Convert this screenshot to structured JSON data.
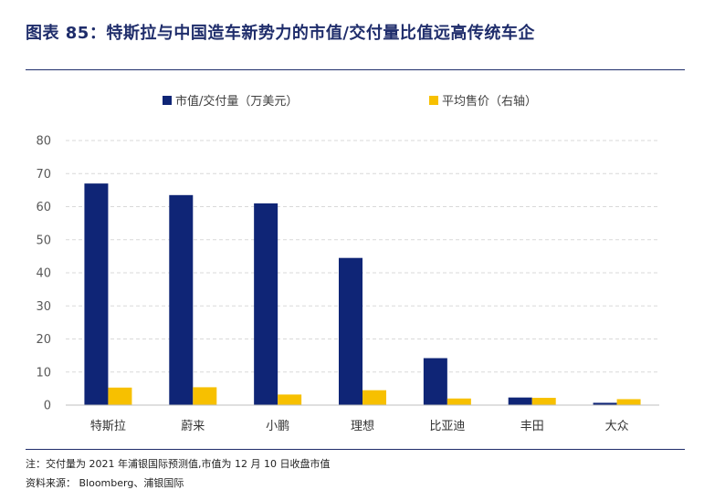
{
  "figure": {
    "title": "图表 85：特斯拉与中国造车新势力的市值/交付量比值远高传统车企",
    "note": "注：交付量为 2021 年浦银国际预测值,市值为 12 月 10 日收盘市值",
    "source": "资料来源： Bloomberg、浦银国际"
  },
  "chart_data": {
    "type": "bar",
    "categories": [
      "特斯拉",
      "蔚来",
      "小鹏",
      "理想",
      "比亚迪",
      "丰田",
      "大众"
    ],
    "series": [
      {
        "name": "市值/交付量（万美元）",
        "color": "#0f2576",
        "values": [
          67,
          63.5,
          61,
          44.5,
          14.2,
          2.3,
          0.7
        ]
      },
      {
        "name": "平均售价（右轴）",
        "color": "#f7c000",
        "values": [
          5.3,
          5.4,
          3.2,
          4.5,
          2.0,
          2.2,
          1.8
        ]
      }
    ],
    "ylim": [
      0,
      80
    ],
    "yticks": [
      0,
      10,
      20,
      30,
      40,
      50,
      60,
      70,
      80
    ],
    "grid": true,
    "legend": "top-center"
  }
}
